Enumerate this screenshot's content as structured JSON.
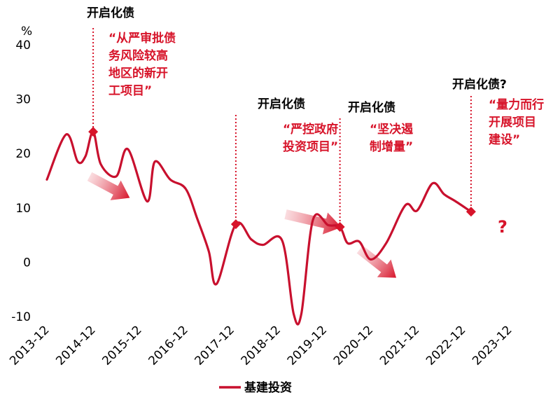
{
  "chart_data": {
    "type": "line",
    "yunit": "%",
    "ylim": [
      -10,
      40
    ],
    "yticks": [
      40,
      30,
      20,
      10,
      0,
      -10
    ],
    "xticks": [
      "2013-12",
      "2014-12",
      "2015-12",
      "2016-12",
      "2017-12",
      "2018-12",
      "2019-12",
      "2020-12",
      "2021-12",
      "2022-12",
      "2023-12"
    ],
    "series": [
      {
        "name": "基建投资",
        "color": "#c8102e",
        "points": [
          [
            "2013-12",
            15.2
          ],
          [
            "2014-05",
            23.5
          ],
          [
            "2014-08",
            18.5
          ],
          [
            "2014-10",
            19.5
          ],
          [
            "2014-12",
            24.0
          ],
          [
            "2015-02",
            18.0
          ],
          [
            "2015-06",
            15.8
          ],
          [
            "2015-09",
            20.8
          ],
          [
            "2016-02",
            11.2
          ],
          [
            "2016-04",
            18.5
          ],
          [
            "2016-08",
            15.2
          ],
          [
            "2016-12",
            13.5
          ],
          [
            "2017-03",
            8.0
          ],
          [
            "2017-06",
            2.0
          ],
          [
            "2017-08",
            -4.0
          ],
          [
            "2018-01",
            7.0
          ],
          [
            "2018-05",
            4.2
          ],
          [
            "2018-08",
            3.2
          ],
          [
            "2019-01",
            4.0
          ],
          [
            "2019-04",
            -9.5
          ],
          [
            "2019-06",
            -9.5
          ],
          [
            "2019-09",
            7.8
          ],
          [
            "2020-01",
            6.8
          ],
          [
            "2020-04",
            6.5
          ],
          [
            "2020-06",
            3.5
          ],
          [
            "2020-09",
            3.8
          ],
          [
            "2020-12",
            0.5
          ],
          [
            "2021-04",
            3.5
          ],
          [
            "2021-09",
            10.5
          ],
          [
            "2021-12",
            9.5
          ],
          [
            "2022-04",
            14.5
          ],
          [
            "2022-07",
            12.5
          ],
          [
            "2022-10",
            11.2
          ],
          [
            "2023-02",
            9.3
          ]
        ]
      }
    ],
    "markers": [
      {
        "x": "2014-12",
        "y": 24.0
      },
      {
        "x": "2018-01",
        "y": 7.0
      },
      {
        "x": "2020-04",
        "y": 6.5
      },
      {
        "x": "2023-02",
        "y": 9.3
      }
    ],
    "events": [
      {
        "title": "开启化债",
        "note": [
          "“从严审批债",
          "务风险较高",
          "地区的新开",
          "工项目”"
        ]
      },
      {
        "title": "开启化债",
        "note": [
          "“严控政府",
          "投资项目”"
        ]
      },
      {
        "title": "开启化债",
        "note": [
          "“坚决遏",
          "制增量”"
        ]
      },
      {
        "title": "开启化债?",
        "note": [
          "“量力而行",
          "开展项目",
          "建设”"
        ]
      }
    ],
    "question_mark": "?",
    "legend": [
      "基建投资"
    ],
    "colors": {
      "line": "#c8102e",
      "note": "#d7142a",
      "arrow": "#d7142a"
    }
  }
}
